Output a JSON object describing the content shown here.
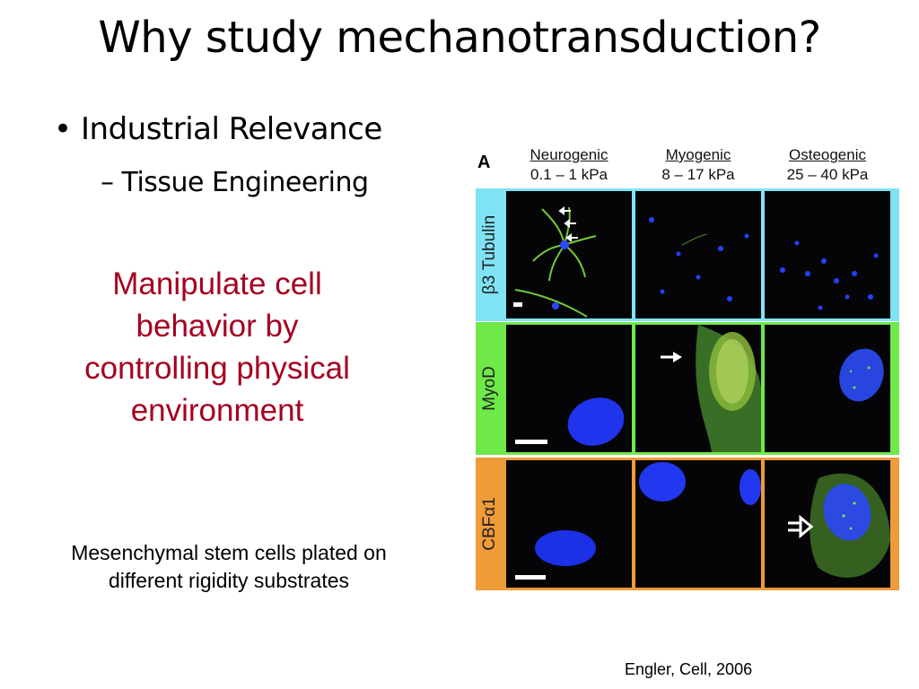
{
  "title": "Why study mechanotransduction?",
  "bullet": {
    "symbol": "•",
    "text": "Industrial Relevance"
  },
  "sub_bullet": {
    "dash": "–",
    "text": "Tissue Engineering"
  },
  "callout": [
    "Manipulate cell",
    "behavior by",
    "controlling physical",
    "environment"
  ],
  "caption": [
    "Mesenchymal stem cells plated on",
    "different rigidity substrates"
  ],
  "citation": "Engler, Cell, 2006",
  "figure": {
    "panel_letter": "A",
    "columns": [
      {
        "name": "Neurogenic",
        "range": "0.1 – 1 kPa"
      },
      {
        "name": "Myogenic",
        "range": "8 – 17 kPa"
      },
      {
        "name": "Osteogenic",
        "range": "25 – 40 kPa"
      }
    ],
    "rows": [
      {
        "label": "β3 Tubulin",
        "band_color": "#7fe3f4"
      },
      {
        "label": "MyoD",
        "band_color": "#6fe84a"
      },
      {
        "label": "CBFα1",
        "band_color": "#ee9b3a"
      }
    ]
  }
}
